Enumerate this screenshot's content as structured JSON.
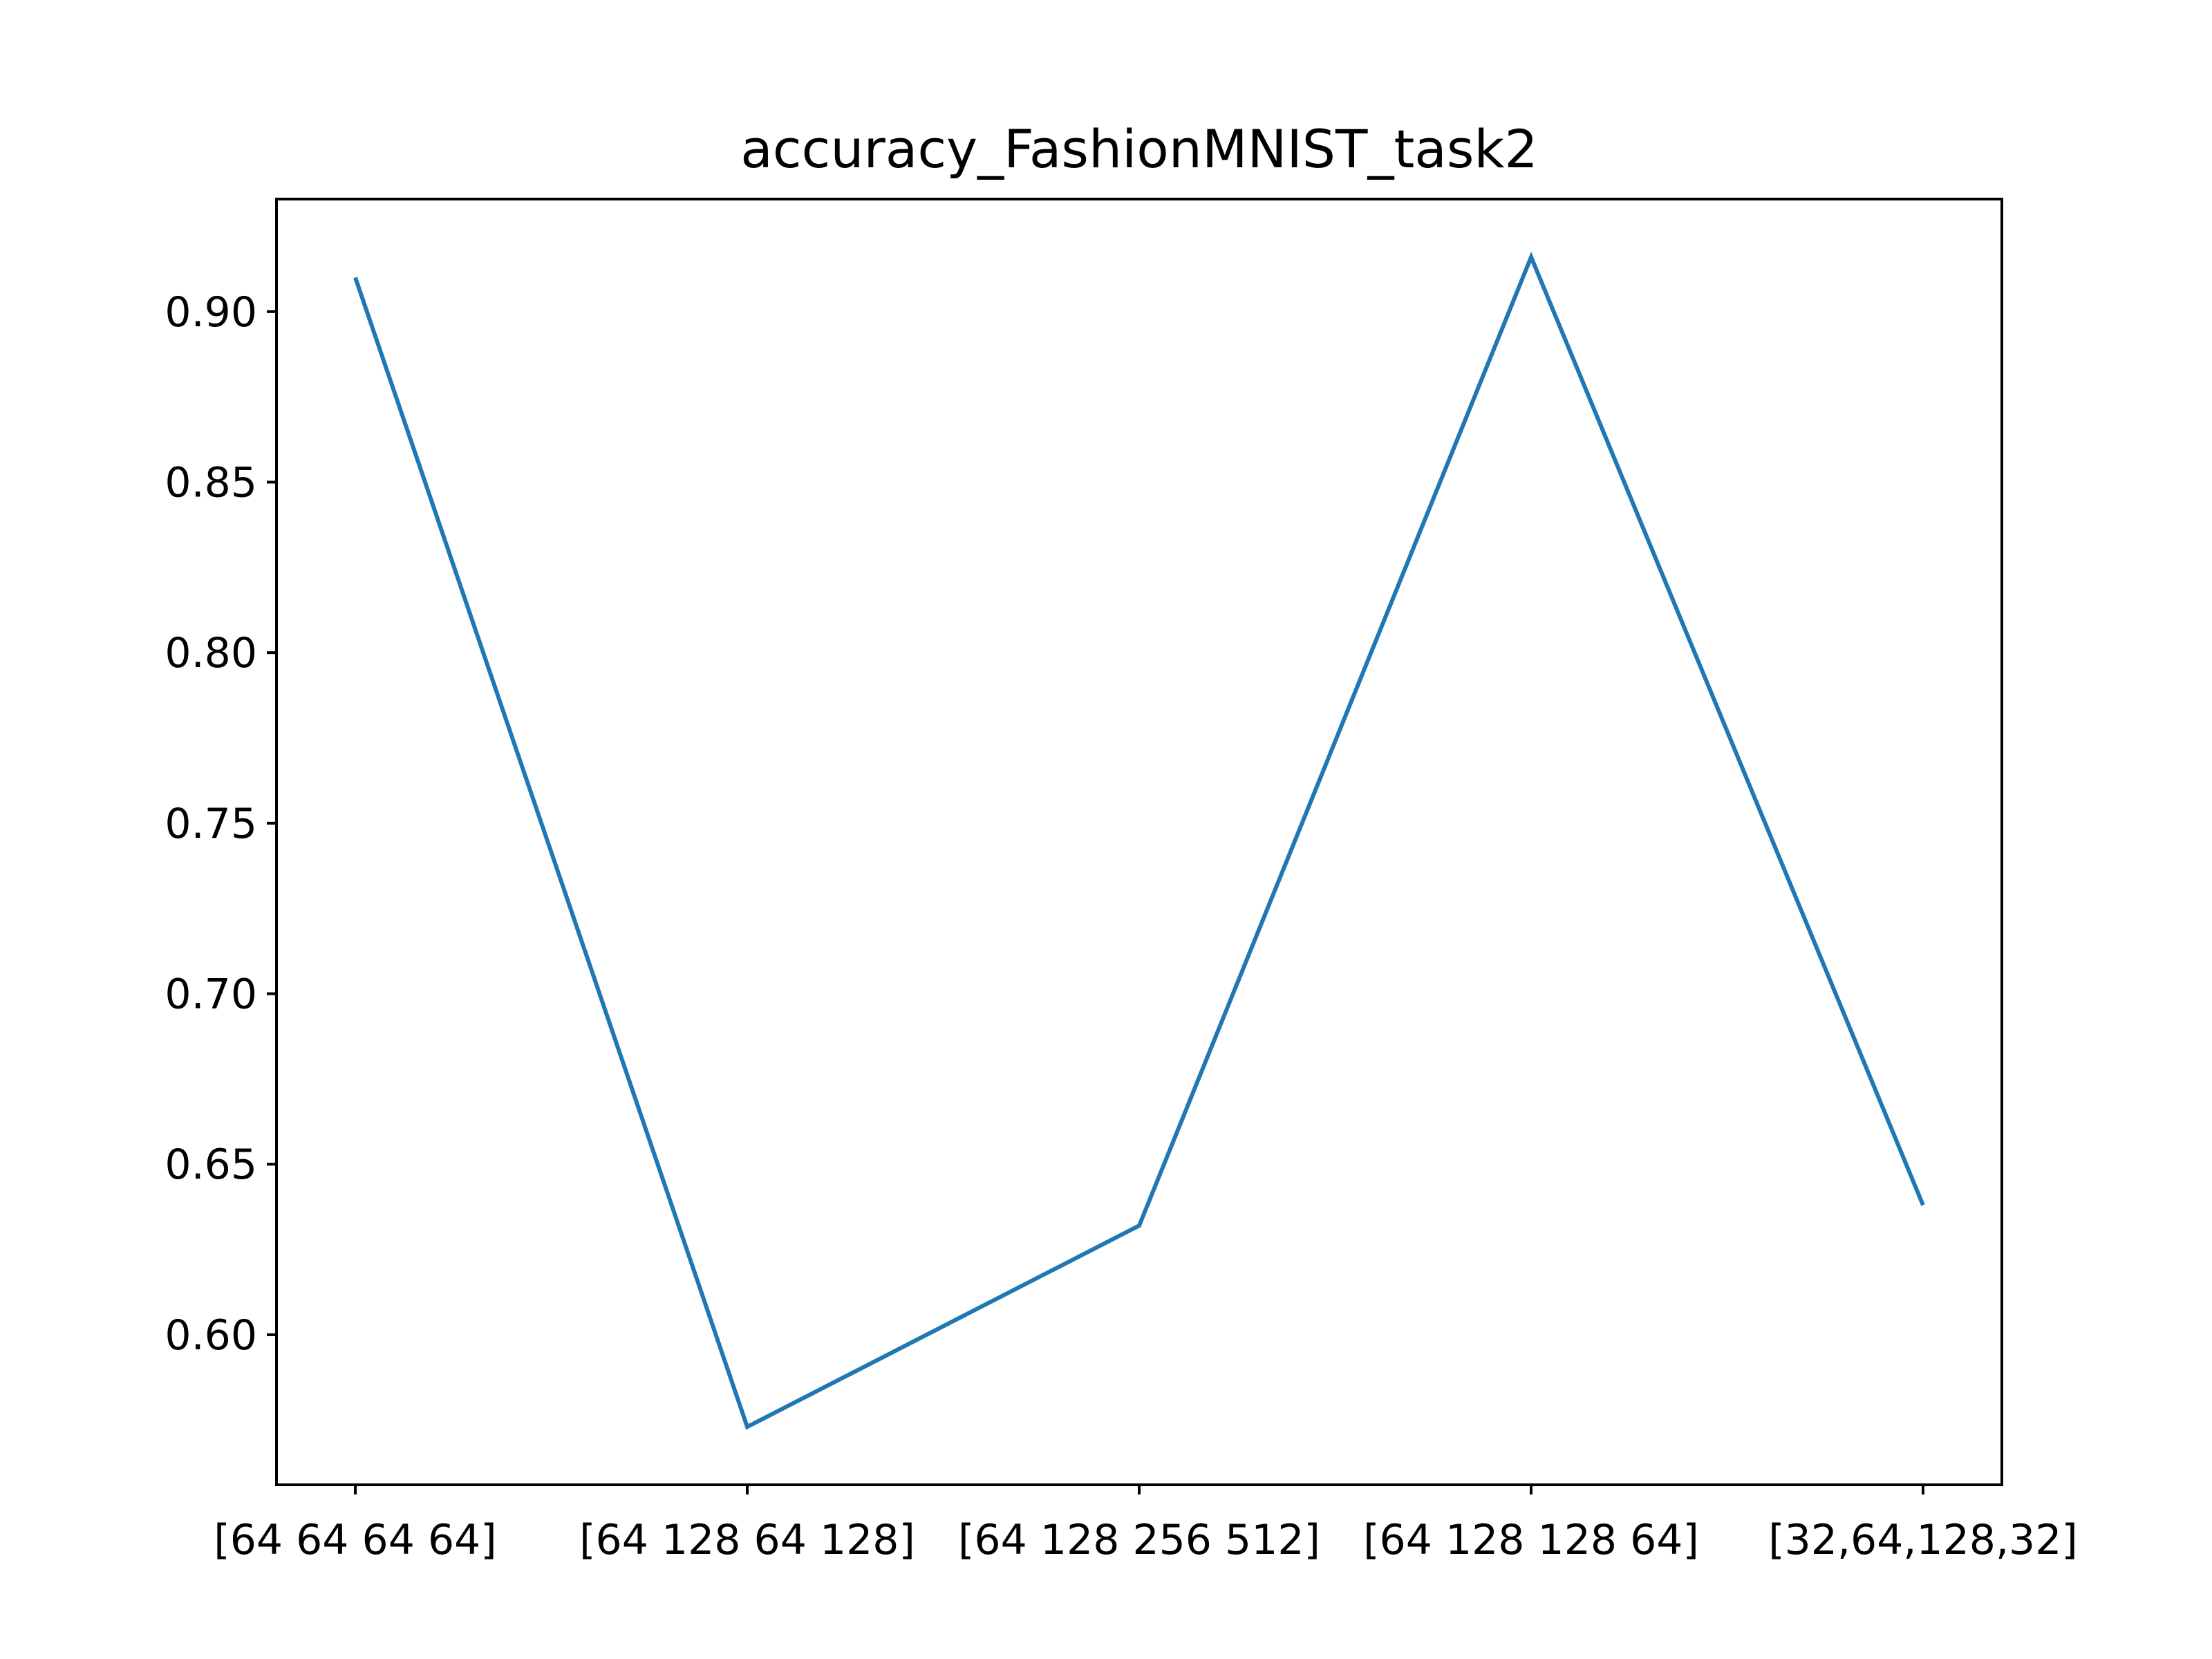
{
  "chart_data": {
    "type": "line",
    "title": "accuracy_FashionMNIST_task2",
    "xlabel": "",
    "ylabel": "",
    "categories": [
      "[64 64 64 64]",
      "[64 128 64 128]",
      "[64 128 256 512]",
      "[64 128 128 64]",
      "[32,64,128,32]"
    ],
    "series": [
      {
        "values": [
          0.91,
          0.573,
          0.632,
          0.916,
          0.638
        ],
        "color": "#1f77b4"
      }
    ],
    "ylim": [
      0.556,
      0.933
    ],
    "yticks": [
      0.6,
      0.65,
      0.7,
      0.75,
      0.8,
      0.85,
      0.9
    ],
    "ytick_labels": [
      "0.60",
      "0.65",
      "0.70",
      "0.75",
      "0.80",
      "0.85",
      "0.90"
    ],
    "grid": false,
    "legend": "none"
  }
}
